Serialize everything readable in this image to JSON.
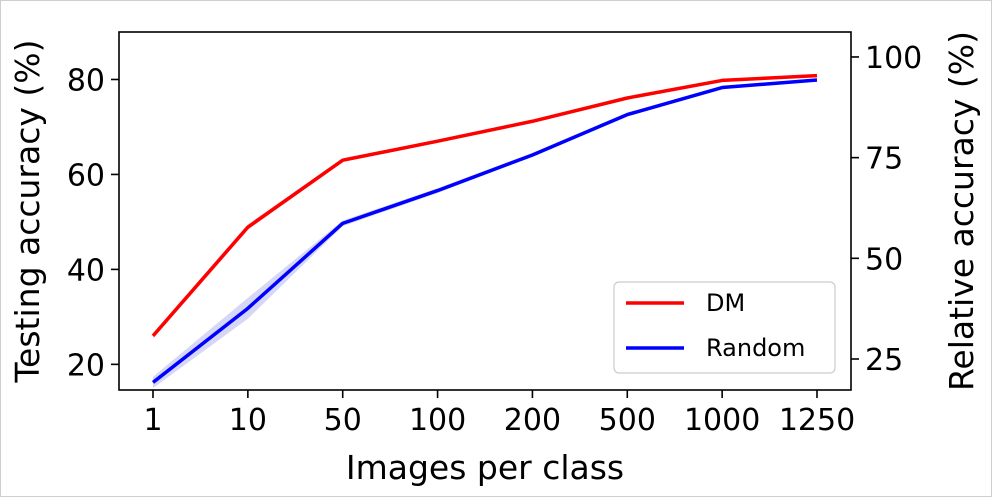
{
  "chart_data": {
    "type": "line",
    "categories": [
      "1",
      "10",
      "50",
      "100",
      "200",
      "500",
      "1000",
      "1250"
    ],
    "series": [
      {
        "name": "DM",
        "color": "#ff0000",
        "values": [
          26.0,
          48.9,
          63.0,
          67.0,
          71.2,
          76.1,
          79.8,
          80.8
        ],
        "band": [
          0.6,
          0.6,
          0.4,
          0.3,
          0.3,
          0.3,
          0.3,
          0.3
        ]
      },
      {
        "name": "Random",
        "color": "#0000ff",
        "values": [
          16.2,
          31.8,
          49.7,
          56.6,
          64.1,
          72.6,
          78.3,
          79.9
        ],
        "band": [
          1.2,
          2.2,
          0.6,
          0.5,
          0.4,
          0.4,
          0.3,
          0.3
        ]
      }
    ],
    "band_color": "#c8c8f4",
    "xlabel": "Images per class",
    "ylabel": "Testing accuracy (%)",
    "ylabel_right": "Relative accuracy (%)",
    "ylim": [
      14.6,
      90.0
    ],
    "yticks": [
      20,
      40,
      60,
      80
    ],
    "yticks_right": [
      25,
      50,
      75,
      100
    ],
    "ylim_right": [
      17.3,
      106.2
    ],
    "grid": false,
    "legend_placement": "lower-right"
  }
}
